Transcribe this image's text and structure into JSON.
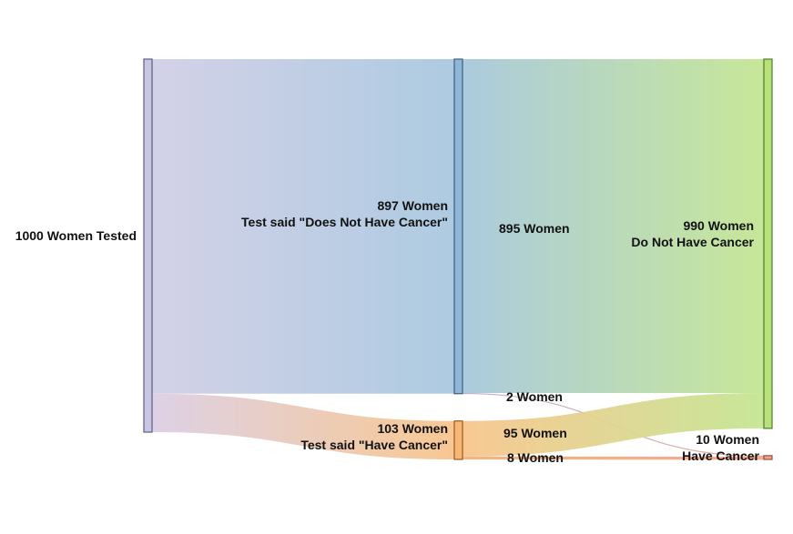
{
  "chart_data": {
    "type": "sankey",
    "nodes": [
      {
        "id": "tested",
        "lines": [
          "1000 Women Tested"
        ],
        "value": 1000,
        "color": "#c8c7e2",
        "stroke": "#5b5b86"
      },
      {
        "id": "neg",
        "lines": [
          "897 Women",
          "Test said \"Does Not Have Cancer\""
        ],
        "value": 897,
        "color": "#8fb6d6",
        "stroke": "#3d5f7d"
      },
      {
        "id": "pos",
        "lines": [
          "103 Women",
          "Test said \"Have Cancer\""
        ],
        "value": 103,
        "color": "#f5b877",
        "stroke": "#9b5a20"
      },
      {
        "id": "nocancer",
        "lines": [
          "990 Women",
          "Do Not Have Cancer"
        ],
        "value": 990,
        "color": "#b7e07a",
        "stroke": "#4f7b24"
      },
      {
        "id": "cancer",
        "lines": [
          "10 Women",
          "Have Cancer"
        ],
        "value": 10,
        "color": "#f2a58a",
        "stroke": "#9b4d3a"
      }
    ],
    "links": [
      {
        "source": "tested",
        "target": "neg",
        "value": 897,
        "label": "",
        "from_color": "#d1cfe6",
        "to_color": "#a9c8e0"
      },
      {
        "source": "tested",
        "target": "pos",
        "value": 103,
        "label": "",
        "from_color": "#dccfe4",
        "to_color": "#f8c58d"
      },
      {
        "source": "neg",
        "target": "nocancer",
        "value": 895,
        "label": "895 Women",
        "from_color": "#a7c8dc",
        "to_color": "#c4e693"
      },
      {
        "source": "neg",
        "target": "cancer",
        "value": 2,
        "label": "2 Women",
        "from_color": "#b9a9d0",
        "to_color": "#e8a894"
      },
      {
        "source": "pos",
        "target": "nocancer",
        "value": 95,
        "label": "95 Women",
        "from_color": "#f8c58d",
        "to_color": "#c4e693"
      },
      {
        "source": "pos",
        "target": "cancer",
        "value": 8,
        "label": "8 Women",
        "from_color": "#f5b078",
        "to_color": "#f2a58a"
      }
    ]
  }
}
